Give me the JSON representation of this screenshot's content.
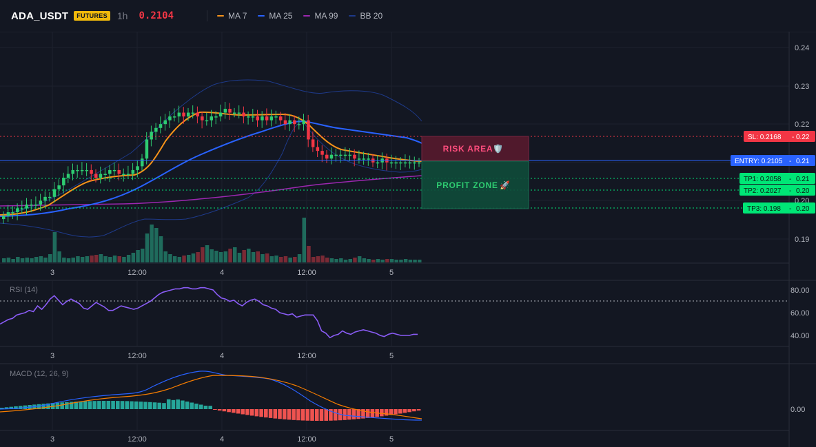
{
  "header": {
    "symbol": "ADA_USDT",
    "badge": "FUTURES",
    "timeframe": "1h",
    "last_price": "0.2104",
    "indicators": [
      {
        "name": "MA 7",
        "color": "#f7931a"
      },
      {
        "name": "MA 25",
        "color": "#2962ff"
      },
      {
        "name": "MA 99",
        "color": "#9c27b0"
      },
      {
        "name": "BB 20",
        "color": "#1e3a8a"
      }
    ]
  },
  "colors": {
    "bull": "#2ecc71",
    "bear": "#f23645",
    "vol_bull": "#1f6b5c",
    "vol_bear": "#7a2a35",
    "ma7": "#f7931a",
    "ma25": "#2962ff",
    "ma99": "#9c27b0",
    "bb": "#1e3a8a",
    "rsi": "#8a5cf6",
    "macd": "#2962ff",
    "signal": "#f57c00"
  },
  "price_axis": [
    "0.24",
    "0.23",
    "0.22",
    "0.21",
    "0.20",
    "0.19"
  ],
  "time_axis": [
    "3",
    "12:00",
    "4",
    "12:00",
    "5"
  ],
  "levels": {
    "sl": {
      "label": "SL: 0.2168",
      "axis": "0.22",
      "price": 0.2168,
      "color": "#f23645"
    },
    "entry": {
      "label": "ENTRY: 0.2105",
      "axis": "0.21",
      "price": 0.2105,
      "color": "#2962ff"
    },
    "tp1": {
      "label": "TP1: 0.2058",
      "axis": "0.21",
      "price": 0.2058,
      "color": "#00e676"
    },
    "tp2": {
      "label": "TP2: 0.2027",
      "axis": "0.20",
      "price": 0.2027,
      "color": "#00e676"
    },
    "tp3": {
      "label": "TP3: 0.198",
      "axis": "0.20",
      "price": 0.198,
      "color": "#00e676"
    }
  },
  "zones": {
    "risk": {
      "label": "RISK AREA",
      "icon": "🛡️"
    },
    "profit": {
      "label": "PROFIT ZONE",
      "icon": "🚀"
    }
  },
  "rsi": {
    "label": "RSI (14)",
    "axis": [
      "80.00",
      "60.00",
      "40.00"
    ],
    "values": [
      50,
      52,
      54,
      55,
      58,
      59,
      60,
      62,
      61,
      66,
      63,
      67,
      72,
      75,
      71,
      67,
      70,
      72,
      70,
      68,
      64,
      63,
      66,
      69,
      67,
      65,
      62,
      62,
      64,
      66,
      65,
      64,
      63,
      64,
      66,
      68,
      70,
      73,
      76,
      78,
      79,
      80,
      81,
      81,
      82,
      82,
      81,
      81,
      82,
      82,
      81,
      80,
      76,
      73,
      72,
      70,
      71,
      68,
      66,
      69,
      71,
      72,
      70,
      67,
      66,
      64,
      63,
      60,
      59,
      58,
      59,
      56,
      57,
      58,
      58,
      58,
      53,
      44,
      42,
      38,
      40,
      41,
      44,
      42,
      41,
      43,
      44,
      45,
      44,
      43,
      42,
      40,
      39,
      41,
      42,
      41,
      40,
      40,
      40,
      41,
      41
    ]
  },
  "macd": {
    "label": "MACD (12, 26, 9)",
    "axis": [
      "0.00"
    ]
  },
  "chart_data": {
    "type": "line",
    "x": [
      "3",
      "12:00",
      "4",
      "12:00",
      "5"
    ],
    "ohlc_close": [
      0.196,
      0.197,
      0.197,
      0.198,
      0.198,
      0.199,
      0.199,
      0.199,
      0.2,
      0.201,
      0.201,
      0.203,
      0.204,
      0.206,
      0.207,
      0.208,
      0.208,
      0.208,
      0.208,
      0.207,
      0.206,
      0.207,
      0.207,
      0.208,
      0.208,
      0.207,
      0.207,
      0.207,
      0.208,
      0.209,
      0.211,
      0.216,
      0.218,
      0.219,
      0.22,
      0.221,
      0.222,
      0.222,
      0.223,
      0.222,
      0.223,
      0.223,
      0.222,
      0.221,
      0.221,
      0.222,
      0.222,
      0.223,
      0.224,
      0.223,
      0.223,
      0.223,
      0.222,
      0.222,
      0.222,
      0.221,
      0.222,
      0.221,
      0.222,
      0.222,
      0.221,
      0.22,
      0.221,
      0.22,
      0.22,
      0.221,
      0.216,
      0.214,
      0.213,
      0.212,
      0.211,
      0.212,
      0.212,
      0.212,
      0.212,
      0.212,
      0.211,
      0.211,
      0.211,
      0.211,
      0.21,
      0.21,
      0.211,
      0.21,
      0.21,
      0.21,
      0.21,
      0.21,
      0.21,
      0.21,
      0.21
    ],
    "ylim": [
      0.185,
      0.245
    ]
  }
}
